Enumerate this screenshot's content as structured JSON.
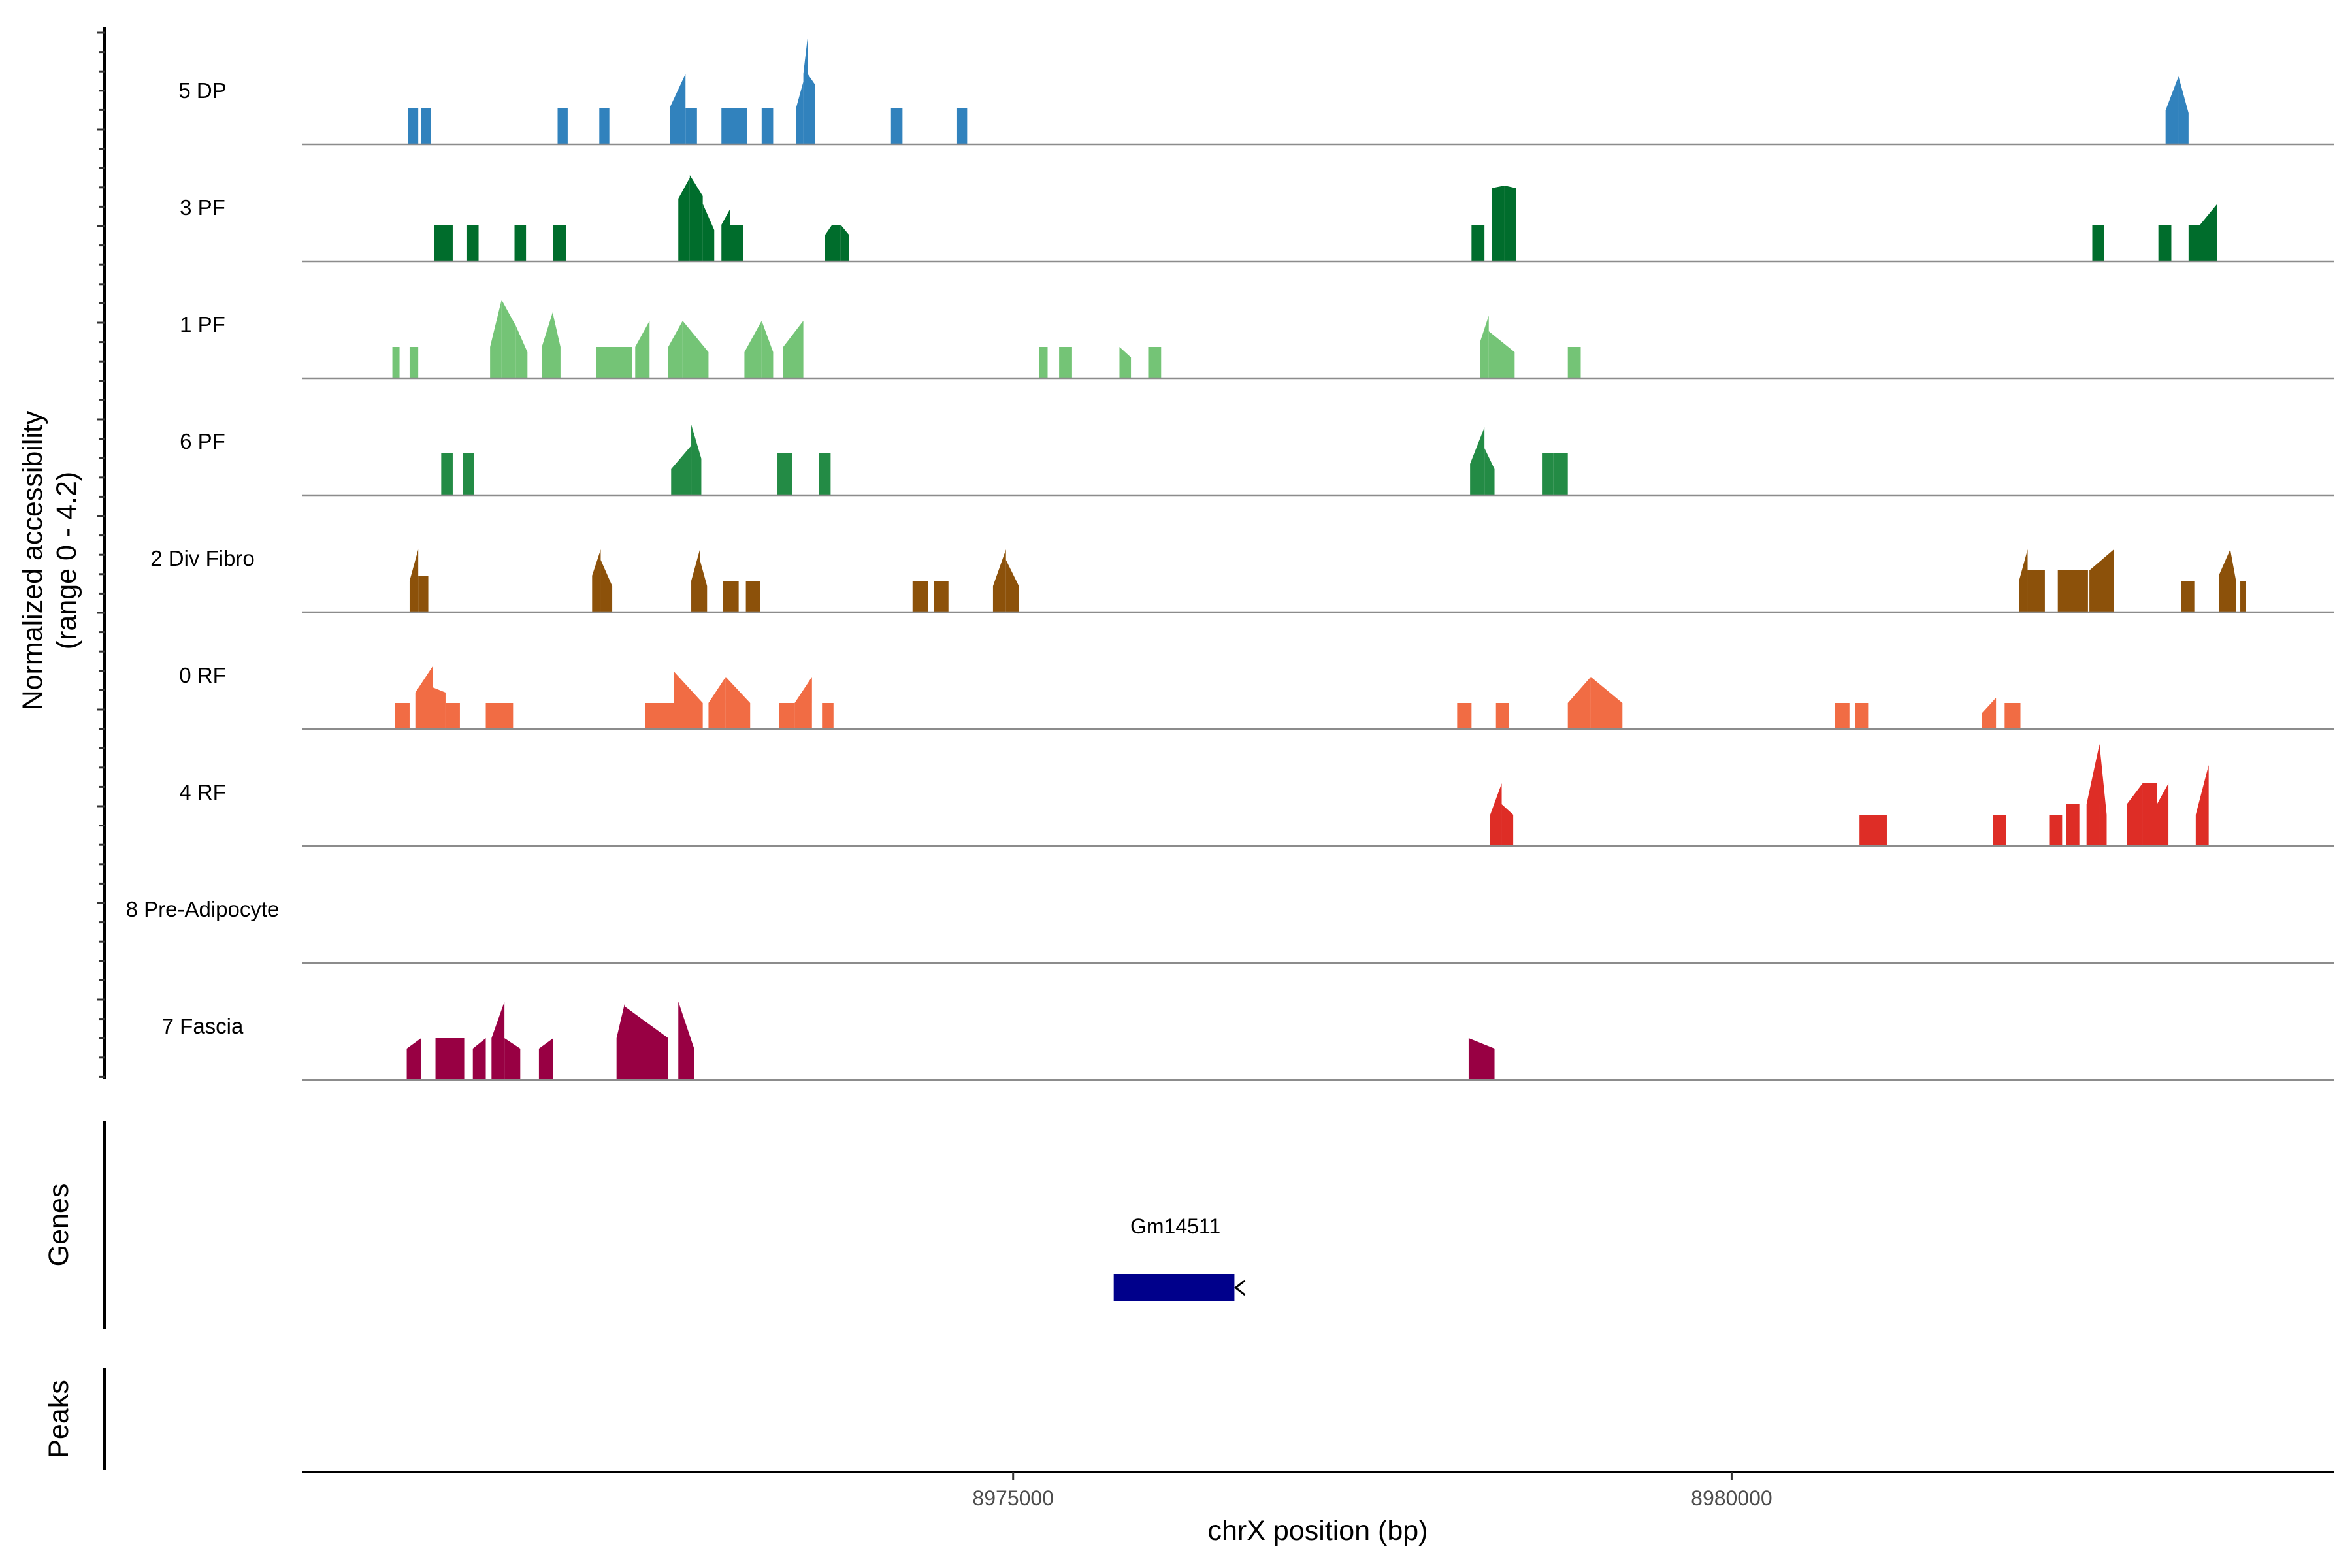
{
  "chart_data": {
    "type": "area",
    "title": "",
    "ylabel": "Normalized accessibility",
    "ylabel_sub": "(range 0 - 4.2)",
    "xlabel": "chrX position (bp)",
    "xlim": [
      8970050,
      8984190
    ],
    "ylim": [
      0,
      4.2
    ],
    "xticks": [
      8975000,
      8980000
    ],
    "xtick_labels": [
      "8975000",
      "8980000"
    ],
    "tracks": [
      {
        "name": "5 DP",
        "color": "#3182bd",
        "peaks": [
          [
            8970790,
            8970860,
            1.4,
            1.4
          ],
          [
            8970880,
            8970950,
            1.4,
            1.4
          ],
          [
            8971830,
            8971900,
            1.4,
            1.4
          ],
          [
            8972120,
            8972190,
            1.4,
            1.4
          ],
          [
            8972610,
            8972720,
            1.4,
            2.7
          ],
          [
            8972720,
            8972800,
            1.4,
            1.4
          ],
          [
            8972970,
            8973150,
            1.4,
            1.4
          ],
          [
            8973250,
            8973330,
            1.4,
            1.4
          ],
          [
            8973490,
            8973540,
            1.4,
            2.4
          ],
          [
            8973540,
            8973570,
            2.7,
            4.1
          ],
          [
            8973570,
            8973620,
            2.7,
            2.3
          ],
          [
            8974150,
            8974230,
            1.4,
            1.4
          ],
          [
            8974610,
            8974680,
            1.4,
            1.4
          ],
          [
            8983020,
            8983110,
            1.3,
            2.6
          ],
          [
            8983110,
            8983180,
            2.6,
            1.2
          ]
        ]
      },
      {
        "name": "3 PF",
        "color": "#006d2c",
        "peaks": [
          [
            8970970,
            8971100,
            1.4,
            1.4
          ],
          [
            8971200,
            8971280,
            1.4,
            1.4
          ],
          [
            8971530,
            8971610,
            1.4,
            1.4
          ],
          [
            8971800,
            8971890,
            1.4,
            1.4
          ],
          [
            8972670,
            8972750,
            2.4,
            3.2
          ],
          [
            8972750,
            8972840,
            3.3,
            2.5
          ],
          [
            8972840,
            8972920,
            2.2,
            1.2
          ],
          [
            8972970,
            8973030,
            1.4,
            2.0
          ],
          [
            8973030,
            8973120,
            1.4,
            1.4
          ],
          [
            8973690,
            8973740,
            1.0,
            1.4
          ],
          [
            8973740,
            8973800,
            1.4,
            1.4
          ],
          [
            8973800,
            8973860,
            1.4,
            1.0
          ],
          [
            8978190,
            8978280,
            1.4,
            1.4
          ],
          [
            8978330,
            8978420,
            2.8,
            2.9
          ],
          [
            8978420,
            8978500,
            2.9,
            2.8
          ],
          [
            8982510,
            8982590,
            1.4,
            1.4
          ],
          [
            8982970,
            8983060,
            1.4,
            1.4
          ],
          [
            8983180,
            8983260,
            1.4,
            1.4
          ],
          [
            8983260,
            8983380,
            1.4,
            2.2
          ]
        ]
      },
      {
        "name": "1 PF",
        "color": "#74c476",
        "peaks": [
          [
            8970680,
            8970730,
            1.2,
            1.2
          ],
          [
            8970800,
            8970860,
            1.2,
            1.2
          ],
          [
            8971360,
            8971440,
            1.2,
            3.0
          ],
          [
            8971440,
            8971540,
            3.0,
            2.0
          ],
          [
            8971540,
            8971620,
            2.0,
            1.0
          ],
          [
            8971720,
            8971800,
            1.2,
            2.6
          ],
          [
            8971800,
            8971850,
            2.4,
            1.2
          ],
          [
            8972100,
            8972350,
            1.2,
            1.2
          ],
          [
            8972370,
            8972470,
            1.2,
            2.2
          ],
          [
            8972600,
            8972700,
            1.2,
            2.2
          ],
          [
            8972700,
            8972880,
            2.2,
            1.0
          ],
          [
            8973130,
            8973250,
            1.0,
            2.2
          ],
          [
            8973250,
            8973330,
            2.2,
            1.0
          ],
          [
            8973400,
            8973540,
            1.2,
            2.2
          ],
          [
            8975180,
            8975240,
            1.2,
            1.2
          ],
          [
            8975320,
            8975410,
            1.2,
            1.2
          ],
          [
            8975740,
            8975820,
            1.2,
            0.8
          ],
          [
            8975940,
            8976030,
            1.2,
            1.2
          ],
          [
            8978250,
            8978310,
            1.4,
            2.4
          ],
          [
            8978310,
            8978490,
            1.8,
            1.0
          ],
          [
            8978860,
            8978950,
            1.2,
            1.2
          ]
        ]
      },
      {
        "name": "6 PF",
        "color": "#238b45",
        "peaks": [
          [
            8971020,
            8971100,
            1.6,
            1.6
          ],
          [
            8971170,
            8971250,
            1.6,
            1.6
          ],
          [
            8972620,
            8972760,
            1.0,
            1.9
          ],
          [
            8972760,
            8972830,
            2.7,
            1.4
          ],
          [
            8973360,
            8973460,
            1.6,
            1.6
          ],
          [
            8973650,
            8973730,
            1.6,
            1.6
          ],
          [
            8978180,
            8978280,
            1.2,
            2.6
          ],
          [
            8978280,
            8978350,
            1.8,
            1.0
          ],
          [
            8978680,
            8978760,
            1.6,
            1.6
          ],
          [
            8978760,
            8978860,
            1.6,
            1.6
          ]
        ]
      },
      {
        "name": "2 Div Fibro",
        "color": "#8c510a",
        "peaks": [
          [
            8970800,
            8970860,
            1.2,
            2.4
          ],
          [
            8970860,
            8970930,
            1.4,
            1.4
          ],
          [
            8972070,
            8972130,
            1.4,
            2.4
          ],
          [
            8972130,
            8972210,
            2.0,
            1.0
          ],
          [
            8972760,
            8972820,
            1.2,
            2.4
          ],
          [
            8972820,
            8972870,
            2.0,
            1.0
          ],
          [
            8972980,
            8973090,
            1.2,
            1.2
          ],
          [
            8973140,
            8973240,
            1.2,
            1.2
          ],
          [
            8974300,
            8974410,
            1.2,
            1.2
          ],
          [
            8974450,
            8974550,
            1.2,
            1.2
          ],
          [
            8974860,
            8974950,
            1.0,
            2.4
          ],
          [
            8974950,
            8975040,
            2.0,
            1.0
          ],
          [
            8982000,
            8982060,
            1.2,
            2.4
          ],
          [
            8982060,
            8982180,
            1.6,
            1.6
          ],
          [
            8982270,
            8982480,
            1.6,
            1.6
          ],
          [
            8982490,
            8982660,
            1.6,
            2.4
          ],
          [
            8983130,
            8983220,
            1.2,
            1.2
          ],
          [
            8983390,
            8983470,
            1.4,
            2.4
          ],
          [
            8983470,
            8983510,
            2.4,
            1.2
          ],
          [
            8983540,
            8983580,
            1.2,
            1.2
          ]
        ]
      },
      {
        "name": "0 RF",
        "color": "#f16c44",
        "peaks": [
          [
            8970700,
            8970800,
            1.0,
            1.0
          ],
          [
            8970840,
            8970960,
            1.4,
            2.4
          ],
          [
            8970960,
            8971050,
            1.6,
            1.4
          ],
          [
            8971050,
            8971150,
            1.0,
            1.0
          ],
          [
            8971330,
            8971520,
            1.0,
            1.0
          ],
          [
            8972440,
            8972640,
            1.0,
            1.0
          ],
          [
            8972640,
            8972840,
            2.2,
            1.0
          ],
          [
            8972880,
            8973000,
            1.0,
            2.0
          ],
          [
            8973000,
            8973170,
            2.0,
            1.0
          ],
          [
            8973370,
            8973480,
            1.0,
            1.0
          ],
          [
            8973480,
            8973600,
            1.0,
            2.0
          ],
          [
            8973670,
            8973750,
            1.0,
            1.0
          ],
          [
            8978090,
            8978190,
            1.0,
            1.0
          ],
          [
            8978360,
            8978450,
            1.0,
            1.0
          ],
          [
            8978860,
            8979020,
            1.0,
            2.0
          ],
          [
            8979020,
            8979240,
            2.0,
            1.0
          ],
          [
            8980720,
            8980820,
            1.0,
            1.0
          ],
          [
            8980860,
            8980950,
            1.0,
            1.0
          ],
          [
            8981740,
            8981840,
            0.6,
            1.2
          ],
          [
            8981900,
            8982010,
            1.0,
            1.0
          ]
        ]
      },
      {
        "name": "4 RF",
        "color": "#de2d26",
        "peaks": [
          [
            8978320,
            8978400,
            1.2,
            2.4
          ],
          [
            8978400,
            8978480,
            1.6,
            1.2
          ],
          [
            8980890,
            8981080,
            1.2,
            1.2
          ],
          [
            8981820,
            8981910,
            1.2,
            1.2
          ],
          [
            8982210,
            8982300,
            1.2,
            1.2
          ],
          [
            8982330,
            8982420,
            1.6,
            1.6
          ],
          [
            8982470,
            8982560,
            1.6,
            3.9
          ],
          [
            8982560,
            8982610,
            3.9,
            1.2
          ],
          [
            8982750,
            8982860,
            1.6,
            2.4
          ],
          [
            8982860,
            8982960,
            2.4,
            2.4
          ],
          [
            8982960,
            8983040,
            1.6,
            2.4
          ],
          [
            8983230,
            8983320,
            1.2,
            3.1
          ]
        ]
      },
      {
        "name": "8 Pre-Adipocyte",
        "color": "#7a0177",
        "peaks": []
      },
      {
        "name": "7 Fascia",
        "color": "#980043",
        "peaks": [
          [
            8970780,
            8970880,
            1.2,
            1.6
          ],
          [
            8970980,
            8971180,
            1.6,
            1.6
          ],
          [
            8971240,
            8971330,
            1.2,
            1.6
          ],
          [
            8971370,
            8971460,
            1.6,
            3.0
          ],
          [
            8971460,
            8971570,
            1.6,
            1.2
          ],
          [
            8971700,
            8971800,
            1.2,
            1.6
          ],
          [
            8972240,
            8972300,
            1.6,
            3.0
          ],
          [
            8972300,
            8972600,
            2.8,
            1.6
          ],
          [
            8972670,
            8972780,
            3.0,
            1.2
          ],
          [
            8978170,
            8978350,
            1.6,
            1.2
          ]
        ]
      }
    ]
  },
  "genes_label": "Genes",
  "peaks_label": "Peaks",
  "gene": {
    "name": "Gm14511",
    "start": 8975700,
    "end": 8976540,
    "strand": "-",
    "color": "#00008b"
  }
}
